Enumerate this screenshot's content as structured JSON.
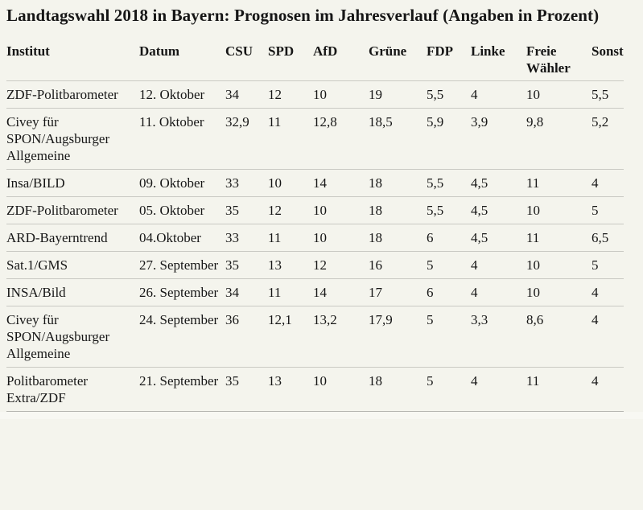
{
  "page": {
    "title": "Landtagswahl 2018 in Bayern: Prognosen im Jahresverlauf (Angaben in Prozent)"
  },
  "colors": {
    "background": "#f4f4ed",
    "text": "#161616",
    "row_border": "#c9c9c3"
  },
  "table": {
    "columns": [
      "Institut",
      "Datum",
      "CSU",
      "SPD",
      "AfD",
      "Grüne",
      "FDP",
      "Linke",
      "Freie Wähler",
      "Sonst"
    ],
    "rows": [
      {
        "institut": "ZDF-Politbarometer",
        "datum": "12. Oktober",
        "values": [
          "34",
          "12",
          "10",
          "19",
          "5,5",
          "4",
          "10",
          "5,5"
        ]
      },
      {
        "institut": "Civey für SPON/Augsburger Allgemeine",
        "datum": "11. Oktober",
        "values": [
          "32,9",
          "11",
          "12,8",
          "18,5",
          "5,9",
          "3,9",
          "9,8",
          "5,2"
        ]
      },
      {
        "institut": "Insa/BILD",
        "datum": "09. Oktober",
        "values": [
          "33",
          "10",
          "14",
          "18",
          "5,5",
          "4,5",
          "11",
          "4"
        ]
      },
      {
        "institut": "ZDF-Politbarometer",
        "datum": "05. Oktober",
        "values": [
          "35",
          "12",
          "10",
          "18",
          "5,5",
          "4,5",
          "10",
          "5"
        ]
      },
      {
        "institut": "ARD-Bayerntrend",
        "datum": "04.Oktober",
        "values": [
          "33",
          "11",
          "10",
          "18",
          "6",
          "4,5",
          "11",
          "6,5"
        ]
      },
      {
        "institut": "Sat.1/GMS",
        "datum": "27. September",
        "values": [
          "35",
          "13",
          "12",
          "16",
          "5",
          "4",
          "10",
          "5"
        ]
      },
      {
        "institut": "INSA/Bild",
        "datum": "26. September",
        "values": [
          "34",
          "11",
          "14",
          "17",
          "6",
          "4",
          "10",
          "4"
        ]
      },
      {
        "institut": "Civey für SPON/Augsburger Allgemeine",
        "datum": "24. September",
        "values": [
          "36",
          "12,1",
          "13,2",
          "17,9",
          "5",
          "3,3",
          "8,6",
          "4"
        ]
      },
      {
        "institut": "Politbarometer Extra/ZDF",
        "datum": "21. September",
        "values": [
          "35",
          "13",
          "10",
          "18",
          "5",
          "4",
          "11",
          "4"
        ]
      }
    ]
  }
}
